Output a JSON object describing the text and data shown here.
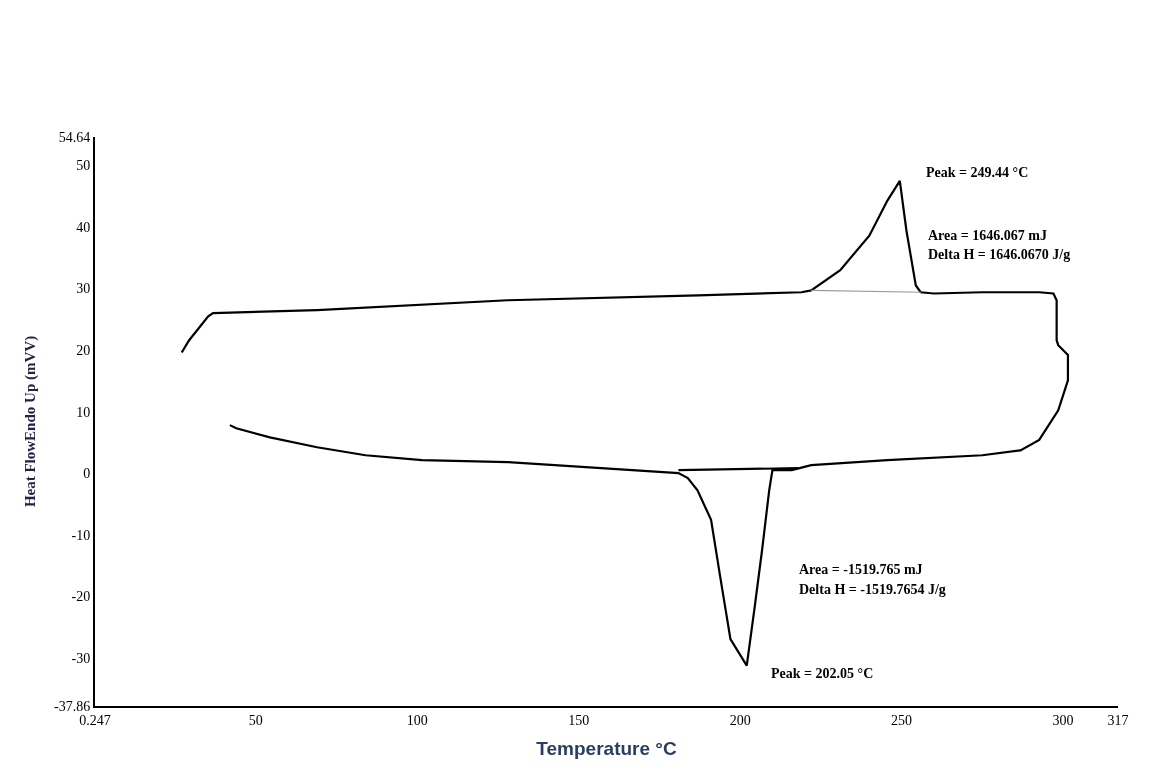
{
  "chart_data": {
    "type": "line",
    "xlabel": "Temperature °C",
    "ylabel": "Heat FlowEndo Up (mVV)",
    "series": [
      {
        "color": "#000000",
        "x": [
          27.1,
          29.4,
          35.3,
          36.8,
          69,
          128,
          187,
          219,
          222,
          231,
          240,
          245.6,
          249.44,
          251.5,
          254.4,
          255.9,
          260,
          275,
          292.6,
          297,
          298,
          298,
          298.5,
          301.5,
          301.5,
          298.5,
          292.6,
          286.8,
          275,
          245.6,
          222,
          216,
          210,
          209,
          206.8,
          204.4,
          202.05,
          197,
          194,
          191,
          186.8,
          183.8,
          180.9,
          157,
          128,
          101.5,
          84,
          69,
          54.4,
          44,
          42
        ],
        "values": [
          19.6,
          21.6,
          25.5,
          26.0,
          26.5,
          28.1,
          28.9,
          29.4,
          29.7,
          33,
          38.6,
          44.3,
          47.5,
          39.4,
          30.5,
          29.4,
          29.2,
          29.4,
          29.4,
          29.2,
          28.1,
          21.6,
          20.8,
          19.2,
          15.1,
          10.2,
          5.4,
          3.7,
          2.9,
          2.1,
          1.3,
          0.5,
          0.5,
          -2.8,
          -12.5,
          -22.2,
          -31.3,
          -27,
          -17.4,
          -7.6,
          -2.8,
          -0.8,
          0,
          0.8,
          1.8,
          2.1,
          2.9,
          4.2,
          5.8,
          7.3,
          7.8
        ]
      },
      {
        "color": "#999999",
        "x": [
          222,
          256
        ],
        "values": [
          29.7,
          29.4
        ]
      },
      {
        "color": "#000000",
        "x": [
          180.9,
          218
        ],
        "values": [
          0.5,
          0.8
        ]
      }
    ],
    "xlim": [
      0.247,
      317
    ],
    "xticks": [
      0.247,
      50,
      100,
      150,
      200,
      250,
      300,
      317
    ],
    "ylim": [
      -37.86,
      54.64
    ],
    "yticks": [
      -37.86,
      -30,
      -20,
      -10,
      0,
      10,
      20,
      30,
      40,
      50,
      54.64
    ],
    "annotations": [
      "Peak = 249.44 °C",
      "Area = 1646.067 mJ",
      "Delta H = 1646.0670 J/g",
      "Area = -1519.765 mJ",
      "Delta H = -1519.7654 J/g",
      "Peak = 202.05 °C"
    ],
    "line_style": "solid",
    "marker": "none"
  }
}
